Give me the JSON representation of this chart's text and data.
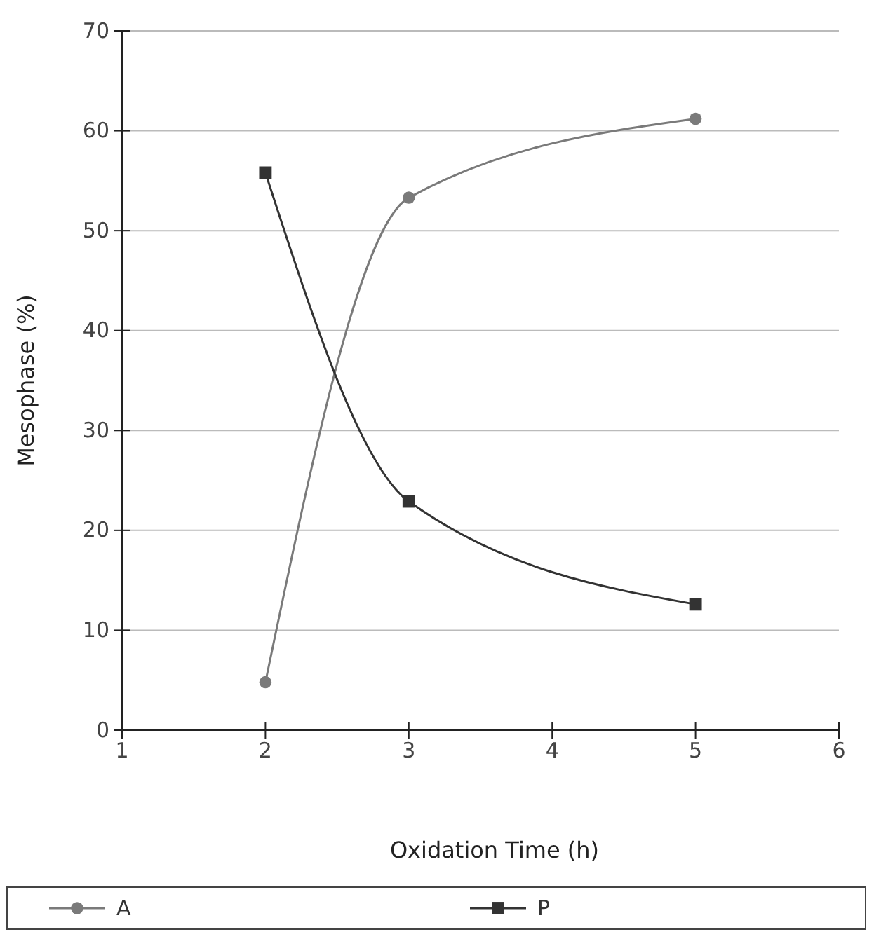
{
  "chart_data": {
    "type": "line",
    "xlabel": "Oxidation Time (h)",
    "ylabel": "Mesophase (%)",
    "x": [
      2,
      3,
      5
    ],
    "series": [
      {
        "name": "A",
        "color": "#7a7a7a",
        "values": [
          4.8,
          53.3,
          61.2
        ],
        "marker": "circle"
      },
      {
        "name": "P",
        "color": "#333333",
        "values": [
          55.8,
          22.9,
          12.6
        ],
        "marker": "square"
      }
    ],
    "xlim": [
      1,
      6
    ],
    "xticks": [
      1,
      2,
      3,
      4,
      5,
      6
    ],
    "ylim": [
      0,
      70
    ],
    "yticks": [
      0,
      10,
      20,
      30,
      40,
      50,
      60,
      70
    ],
    "grid": "y",
    "legend": "bottom"
  }
}
